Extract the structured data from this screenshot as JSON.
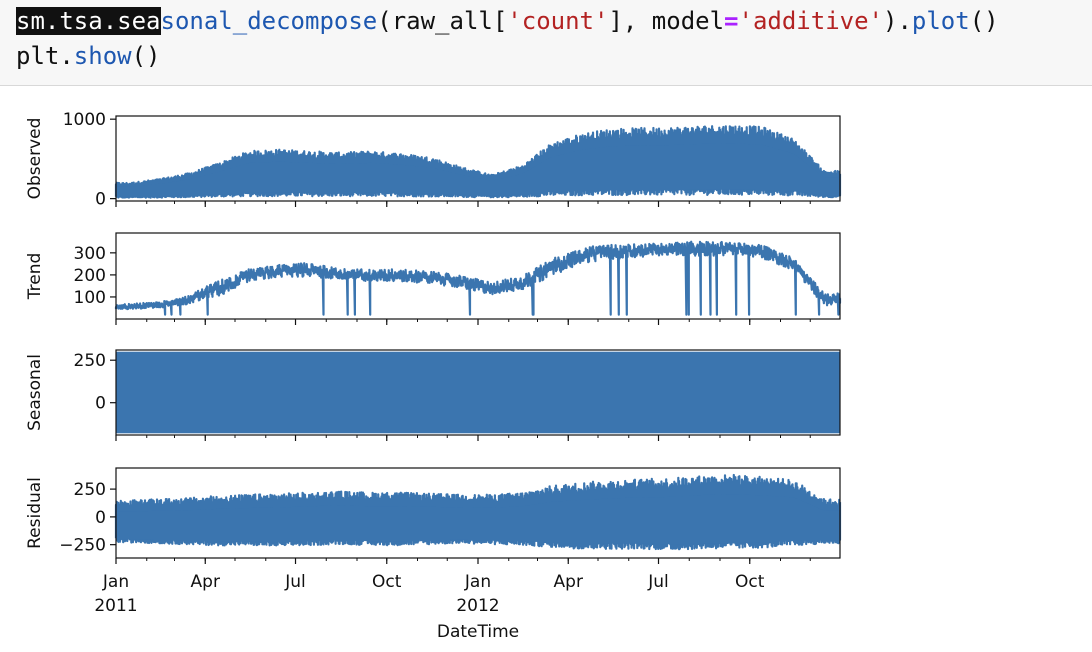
{
  "code": {
    "line1": {
      "selected": "sm.tsa.sea",
      "fn_part": "sonal_decompose",
      "open": "(raw_all[",
      "str1": "'count'",
      "mid": "], model",
      "eq": "=",
      "str2": "'additive'",
      "close": ").",
      "fn2": "plot",
      "end": "()"
    },
    "line2": {
      "obj": "plt.",
      "fn": "show",
      "end": "()"
    }
  },
  "chart_data": {
    "type": "line",
    "xlabel": "DateTime",
    "x_ticks": [
      {
        "date": "2011-01-01",
        "label": "Jan",
        "year": "2011"
      },
      {
        "date": "2011-04-01",
        "label": "Apr"
      },
      {
        "date": "2011-07-01",
        "label": "Jul"
      },
      {
        "date": "2011-10-01",
        "label": "Oct"
      },
      {
        "date": "2012-01-01",
        "label": "Jan",
        "year": "2012"
      },
      {
        "date": "2012-04-01",
        "label": "Apr"
      },
      {
        "date": "2012-07-01",
        "label": "Jul"
      },
      {
        "date": "2012-10-01",
        "label": "Oct"
      }
    ],
    "xlim": [
      "2011-01-01",
      "2012-12-31"
    ],
    "color": "#3b75af",
    "panels": [
      {
        "ylabel": "Observed",
        "yticks": [
          0,
          1000
        ],
        "ylim": [
          -30,
          1040
        ],
        "envelope": {
          "months": [
            "2011-01",
            "2011-02",
            "2011-03",
            "2011-04",
            "2011-05",
            "2011-06",
            "2011-07",
            "2011-08",
            "2011-09",
            "2011-10",
            "2011-11",
            "2011-12",
            "2012-01",
            "2012-02",
            "2012-03",
            "2012-04",
            "2012-05",
            "2012-06",
            "2012-07",
            "2012-08",
            "2012-09",
            "2012-10",
            "2012-11",
            "2012-12"
          ],
          "low": [
            0,
            0,
            0,
            0,
            0,
            0,
            0,
            0,
            0,
            0,
            0,
            0,
            0,
            0,
            0,
            0,
            0,
            0,
            0,
            0,
            0,
            0,
            0,
            0
          ],
          "high": [
            200,
            250,
            320,
            450,
            600,
            620,
            600,
            580,
            600,
            570,
            520,
            400,
            300,
            420,
            700,
            820,
            880,
            890,
            900,
            920,
            930,
            900,
            750,
            350
          ]
        }
      },
      {
        "ylabel": "Trend",
        "yticks": [
          100,
          200,
          300
        ],
        "ylim": [
          0,
          390
        ],
        "envelope": {
          "months": [
            "2011-01",
            "2011-02",
            "2011-03",
            "2011-04",
            "2011-05",
            "2011-06",
            "2011-07",
            "2011-08",
            "2011-09",
            "2011-10",
            "2011-11",
            "2011-12",
            "2012-01",
            "2012-02",
            "2012-03",
            "2012-04",
            "2012-05",
            "2012-06",
            "2012-07",
            "2012-08",
            "2012-09",
            "2012-10",
            "2012-11",
            "2012-12"
          ],
          "low": [
            40,
            45,
            60,
            90,
            160,
            180,
            180,
            170,
            160,
            160,
            150,
            130,
            100,
            120,
            180,
            240,
            260,
            270,
            280,
            270,
            280,
            260,
            210,
            50
          ],
          "high": [
            70,
            80,
            110,
            180,
            230,
            250,
            260,
            230,
            230,
            230,
            220,
            200,
            170,
            200,
            280,
            330,
            340,
            345,
            350,
            360,
            350,
            340,
            280,
            120
          ]
        }
      },
      {
        "ylabel": "Seasonal",
        "yticks": [
          0,
          250
        ],
        "ylim": [
          -190,
          310
        ],
        "band": {
          "low": -180,
          "high": 300
        }
      },
      {
        "ylabel": "Residual",
        "yticks": [
          -250,
          0,
          250
        ],
        "yticklabels": [
          "−250",
          "0",
          "250"
        ],
        "ylim": [
          -370,
          440
        ],
        "envelope": {
          "months": [
            "2011-01",
            "2011-02",
            "2011-03",
            "2011-04",
            "2011-05",
            "2011-06",
            "2011-07",
            "2011-08",
            "2011-09",
            "2011-10",
            "2011-11",
            "2011-12",
            "2012-01",
            "2012-02",
            "2012-03",
            "2012-04",
            "2012-05",
            "2012-06",
            "2012-07",
            "2012-08",
            "2012-09",
            "2012-10",
            "2012-11",
            "2012-12"
          ],
          "low": [
            -250,
            -260,
            -270,
            -280,
            -280,
            -290,
            -280,
            -270,
            -280,
            -280,
            -270,
            -260,
            -270,
            -280,
            -300,
            -320,
            -320,
            -320,
            -330,
            -320,
            -320,
            -310,
            -290,
            -260
          ],
          "high": [
            150,
            160,
            170,
            190,
            200,
            210,
            220,
            230,
            220,
            220,
            210,
            200,
            200,
            220,
            280,
            310,
            330,
            340,
            350,
            370,
            380,
            360,
            330,
            160
          ]
        }
      }
    ]
  }
}
